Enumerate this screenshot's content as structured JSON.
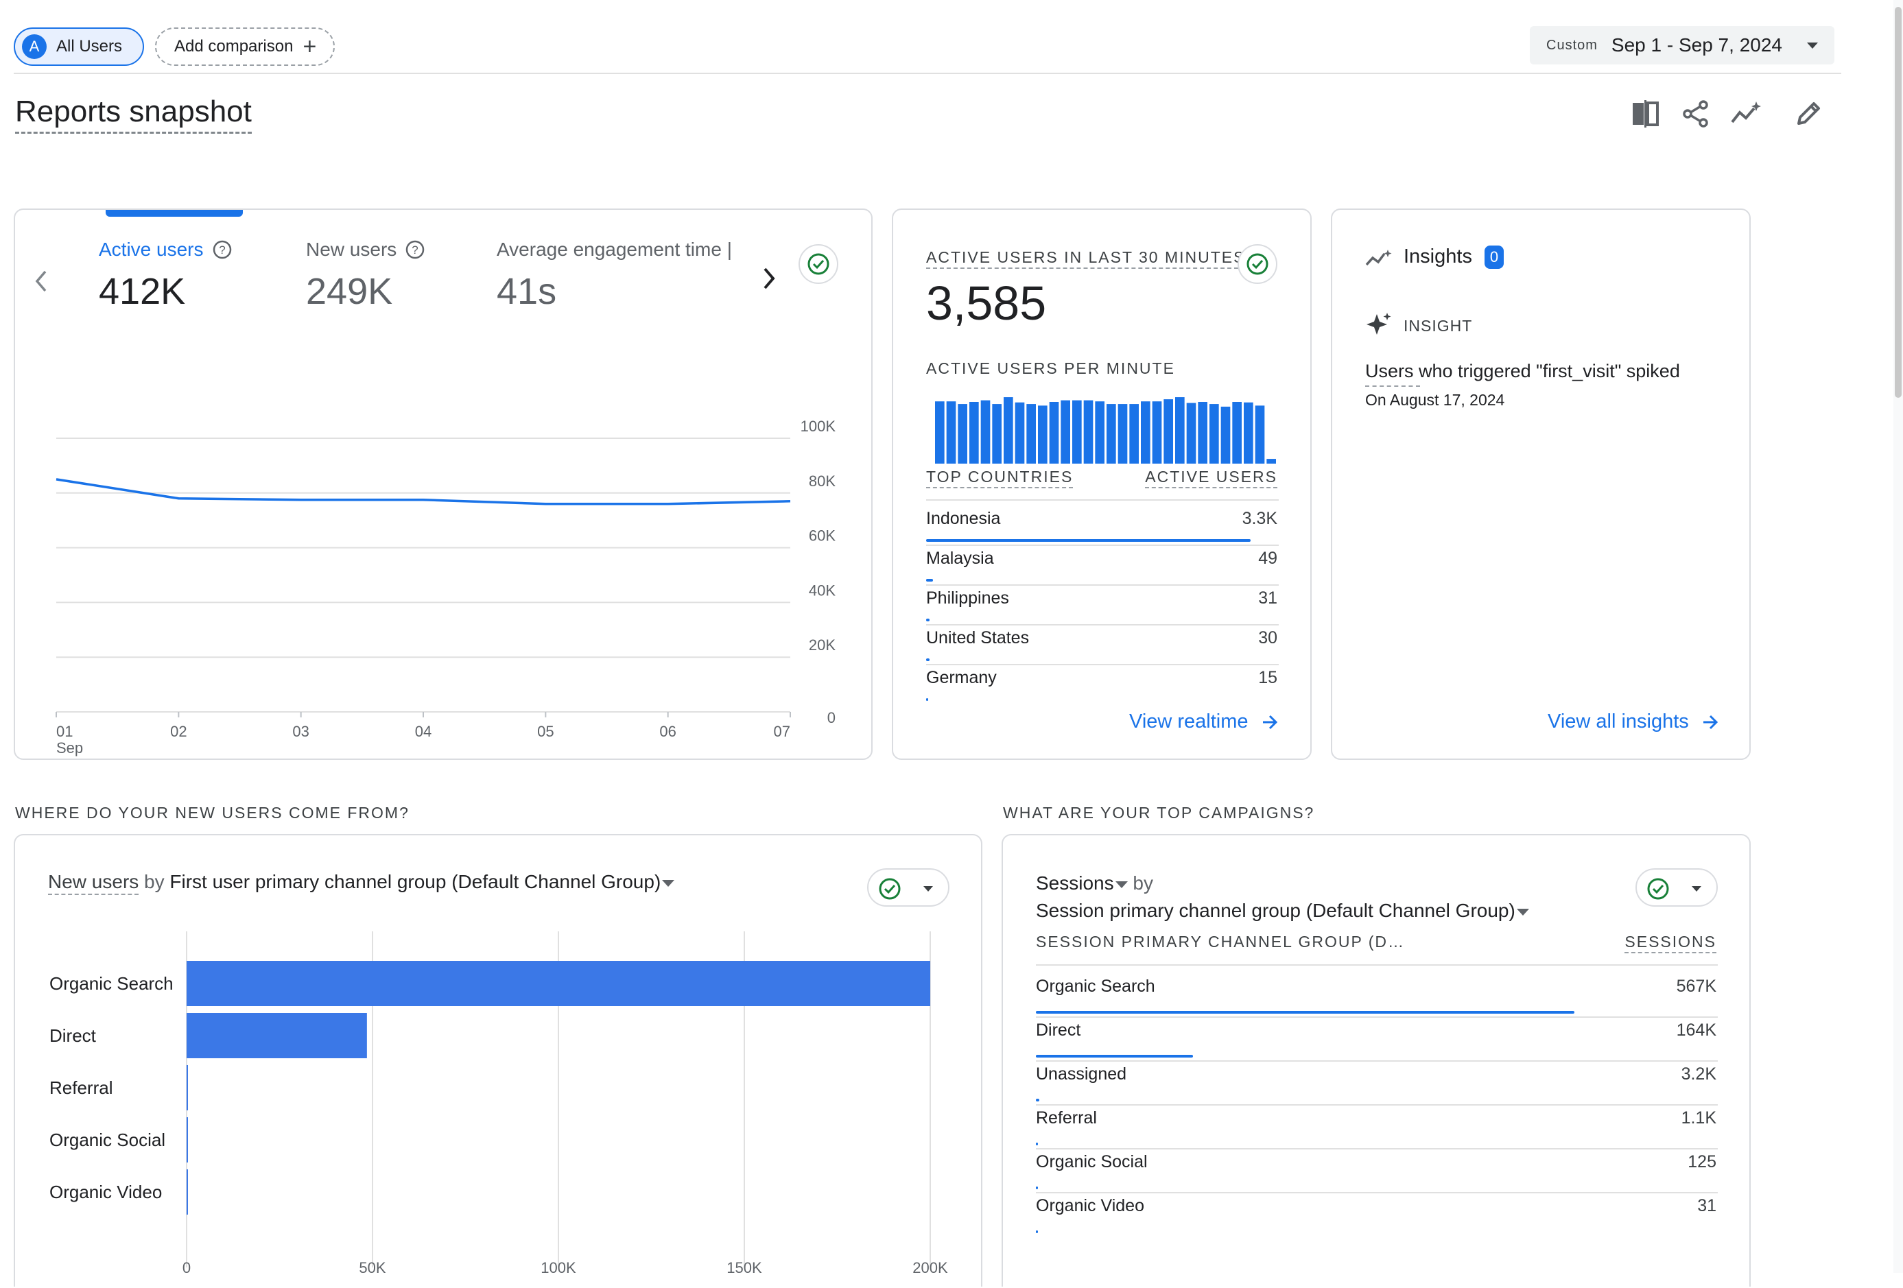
{
  "header": {
    "user_chip_initial": "A",
    "user_chip_label": "All Users",
    "add_comparison_label": "Add comparison",
    "date_range_label": "Custom",
    "date_range_value": "Sep 1 - Sep 7, 2024",
    "page_title": "Reports snapshot",
    "toolbar_icons": [
      "compare-view-icon",
      "share-icon",
      "insights-sparkline-icon",
      "edit-pencil-icon"
    ]
  },
  "overview": {
    "metrics": [
      {
        "label": "Active users",
        "value": "412K",
        "selected": true
      },
      {
        "label": "New users",
        "value": "249K",
        "selected": false
      },
      {
        "label": "Average engagement time |",
        "value": "41s",
        "selected": false
      }
    ],
    "chart_data": {
      "type": "line",
      "x": [
        "01\nSep",
        "02",
        "03",
        "04",
        "05",
        "06",
        "07"
      ],
      "x_tick_labels": [
        "01",
        "02",
        "03",
        "04",
        "05",
        "06",
        "07"
      ],
      "x_sublabel": "Sep",
      "series": [
        {
          "values": [
            85000,
            78000,
            77500,
            77500,
            76000,
            76000,
            77000
          ],
          "color": "#1a73e8"
        }
      ],
      "y_ticks": [
        "100K",
        "80K",
        "60K",
        "40K",
        "20K",
        "0"
      ],
      "ylim": [
        0,
        100000
      ],
      "grid": true
    }
  },
  "realtime": {
    "title": "ACTIVE USERS IN LAST 30 MINUTES",
    "value": "3,585",
    "per_minute_label": "ACTIVE USERS PER MINUTE",
    "chart_data": {
      "type": "bar",
      "values": [
        118,
        118,
        113,
        117,
        120,
        113,
        126,
        116,
        113,
        110,
        117,
        120,
        120,
        120,
        118,
        113,
        113,
        113,
        118,
        118,
        122,
        126,
        115,
        117,
        113,
        108,
        117,
        116,
        110,
        9
      ],
      "color": "#1a73e8"
    },
    "table_headers": [
      "TOP COUNTRIES",
      "ACTIVE USERS"
    ],
    "rows": [
      {
        "name": "Indonesia",
        "value": "3.3K",
        "fraction": 0.92
      },
      {
        "name": "Malaysia",
        "value": "49",
        "fraction": 0.02
      },
      {
        "name": "Philippines",
        "value": "31",
        "fraction": 0.01
      },
      {
        "name": "United States",
        "value": "30",
        "fraction": 0.01
      },
      {
        "name": "Germany",
        "value": "15",
        "fraction": 0.005
      }
    ],
    "link_label": "View realtime"
  },
  "insights": {
    "title": "Insights",
    "badge": "0",
    "insight_tag": "INSIGHT",
    "insight_text": "Users who triggered \"first_visit\" spiked",
    "insight_date": "On August 17, 2024",
    "link_label": "View all insights"
  },
  "new_users_section": {
    "heading": "WHERE DO YOUR NEW USERS COME FROM?",
    "card_title_metric": "New users",
    "card_title_by": "by",
    "card_title_dimension": "First user primary channel group (Default Channel Group)",
    "chart_data": {
      "type": "bar",
      "orientation": "horizontal",
      "categories": [
        "Organic Search",
        "Direct",
        "Referral",
        "Organic Social",
        "Organic Video"
      ],
      "values": [
        200000,
        48500,
        300,
        250,
        150
      ],
      "x_ticks": [
        "0",
        "50K",
        "100K",
        "150K",
        "200K"
      ],
      "xlim": [
        0,
        200000
      ],
      "color": "#3b78e7"
    }
  },
  "campaigns_section": {
    "heading": "WHAT ARE YOUR TOP CAMPAIGNS?",
    "card_title_metric": "Sessions",
    "card_title_by": "by",
    "card_title_dimension": "Session primary channel group (Default Channel Group)",
    "table_headers": [
      "SESSION PRIMARY CHANNEL GROUP (D…",
      "SESSIONS"
    ],
    "rows": [
      {
        "name": "Organic Search",
        "value": "567K",
        "fraction": 0.79
      },
      {
        "name": "Direct",
        "value": "164K",
        "fraction": 0.23
      },
      {
        "name": "Unassigned",
        "value": "3.2K",
        "fraction": 0.005
      },
      {
        "name": "Referral",
        "value": "1.1K",
        "fraction": 0.002
      },
      {
        "name": "Organic Social",
        "value": "125",
        "fraction": 0.001
      },
      {
        "name": "Organic Video",
        "value": "31",
        "fraction": 0.0005
      }
    ]
  }
}
